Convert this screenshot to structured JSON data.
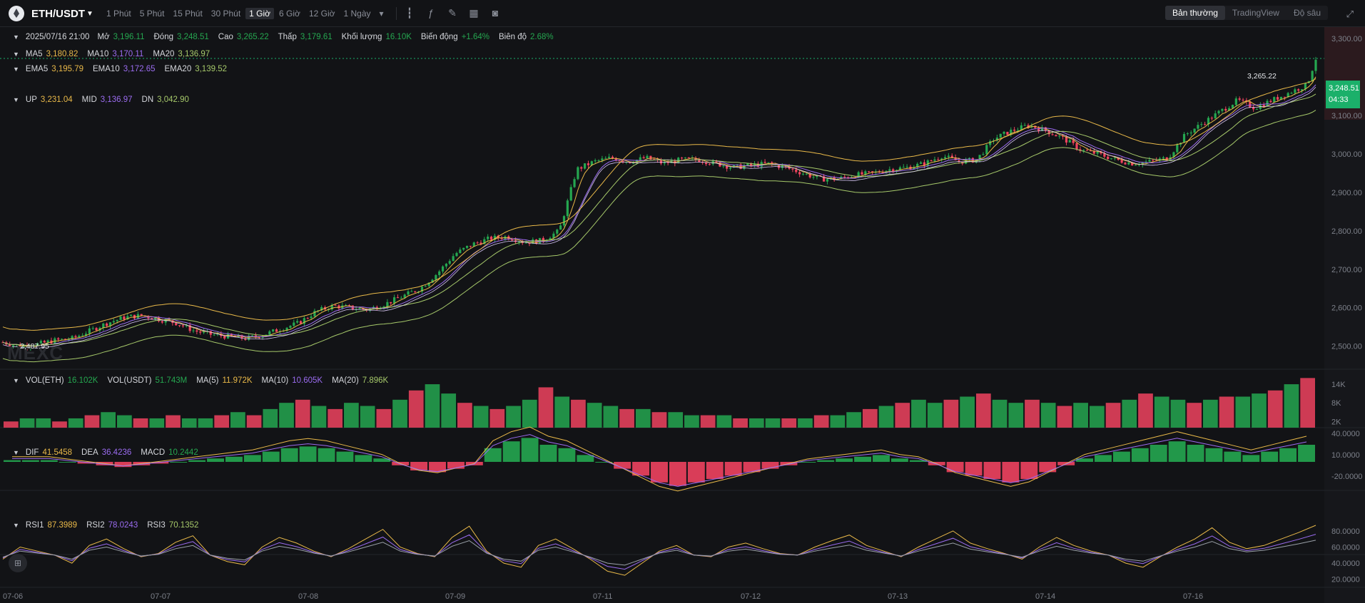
{
  "header": {
    "pair": "ETH/USDT",
    "intervals": [
      "1 Phút",
      "5 Phút",
      "15 Phút",
      "30 Phút",
      "1 Giờ",
      "6 Giờ",
      "12 Giờ",
      "1 Ngày"
    ],
    "active_interval": "1 Giờ",
    "modes": [
      "Bản thường",
      "TradingView",
      "Độ sâu"
    ],
    "active_mode": "Bản thường"
  },
  "ohlc": {
    "time": "2025/07/16 21:00",
    "open_label": "Mở",
    "open": "3,196.11",
    "close_label": "Đóng",
    "close": "3,248.51",
    "high_label": "Cao",
    "high": "3,265.22",
    "low_label": "Thấp",
    "low": "3,179.61",
    "volume_label": "Khối lượng",
    "volume": "16.10K",
    "change_label": "Biến động",
    "change": "+1.64%",
    "amplitude_label": "Biên độ",
    "amplitude": "2.68%"
  },
  "ma": {
    "ma5_label": "MA5",
    "ma5": "3,180.82",
    "ma10_label": "MA10",
    "ma10": "3,170.11",
    "ma20_label": "MA20",
    "ma20": "3,136.97"
  },
  "ema": {
    "ema5_label": "EMA5",
    "ema5": "3,195.79",
    "ema10_label": "EMA10",
    "ema10": "3,172.65",
    "ema20_label": "EMA20",
    "ema20": "3,139.52"
  },
  "boll": {
    "up_label": "UP",
    "up": "3,231.04",
    "mid_label": "MID",
    "mid": "3,136.97",
    "dn_label": "DN",
    "dn": "3,042.90"
  },
  "vol": {
    "eth_label": "VOL(ETH)",
    "eth": "16.102K",
    "usdt_label": "VOL(USDT)",
    "usdt": "51.743M",
    "ma5_label": "MA(5)",
    "ma5": "11.972K",
    "ma10_label": "MA(10)",
    "ma10": "10.605K",
    "ma20_label": "MA(20)",
    "ma20": "7.896K"
  },
  "macd": {
    "dif_label": "DIF",
    "dif": "41.5458",
    "dea_label": "DEA",
    "dea": "36.4236",
    "macd_label": "MACD",
    "macd": "10.2442"
  },
  "rsi": {
    "rsi1_label": "RSI1",
    "rsi1": "87.3989",
    "rsi2_label": "RSI2",
    "rsi2": "78.0243",
    "rsi3_label": "RSI3",
    "rsi3": "70.1352"
  },
  "price_tag": {
    "price": "3,248.51",
    "countdown": "04:33"
  },
  "high_marker": "3,265.22",
  "low_marker": "2,487.95",
  "watermark": "MEXC",
  "colors": {
    "up": "#25a750",
    "down": "#f0435f",
    "ma5": "#e9b949",
    "ma10": "#9b6cf0",
    "ma20": "#a6c96a",
    "background": "#121316"
  },
  "chart_data": {
    "type": "candlestick",
    "x_ticks": [
      "07-06",
      "07-07",
      "07-08",
      "07-09",
      "07-11",
      "07-12",
      "07-13",
      "07-14",
      "07-16"
    ],
    "price_axis": [
      "3,300.00",
      "3,100.00",
      "3,000.00",
      "2,900.00",
      "2,800.00",
      "2,700.00",
      "2,600.00",
      "2,500.00"
    ],
    "price_range": [
      2440,
      3330
    ],
    "volume_axis": [
      "14K",
      "8K",
      "2K"
    ],
    "macd_axis": [
      "40.0000",
      "10.0000",
      "-20.0000"
    ],
    "rsi_axis": [
      "80.0000",
      "60.0000",
      "40.0000",
      "20.0000"
    ],
    "close_path": [
      [
        0,
        2510
      ],
      [
        10,
        2500
      ],
      [
        20,
        2505
      ],
      [
        30,
        2515
      ],
      [
        40,
        2520
      ],
      [
        50,
        2540
      ],
      [
        60,
        2560
      ],
      [
        70,
        2575
      ],
      [
        80,
        2580
      ],
      [
        90,
        2570
      ],
      [
        100,
        2560
      ],
      [
        110,
        2540
      ],
      [
        120,
        2530
      ],
      [
        130,
        2525
      ],
      [
        140,
        2520
      ],
      [
        150,
        2530
      ],
      [
        160,
        2545
      ],
      [
        170,
        2560
      ],
      [
        180,
        2590
      ],
      [
        190,
        2605
      ],
      [
        200,
        2600
      ],
      [
        210,
        2595
      ],
      [
        220,
        2610
      ],
      [
        230,
        2630
      ],
      [
        240,
        2650
      ],
      [
        250,
        2690
      ],
      [
        260,
        2740
      ],
      [
        270,
        2765
      ],
      [
        280,
        2780
      ],
      [
        290,
        2785
      ],
      [
        300,
        2770
      ],
      [
        310,
        2775
      ],
      [
        320,
        2800
      ],
      [
        330,
        2960
      ],
      [
        340,
        2980
      ],
      [
        350,
        2990
      ],
      [
        360,
        2980
      ],
      [
        370,
        2990
      ],
      [
        380,
        2975
      ],
      [
        390,
        2985
      ],
      [
        400,
        2985
      ],
      [
        410,
        2975
      ],
      [
        420,
        2965
      ],
      [
        430,
        2970
      ],
      [
        440,
        2975
      ],
      [
        450,
        2965
      ],
      [
        460,
        2950
      ],
      [
        470,
        2935
      ],
      [
        480,
        2935
      ],
      [
        490,
        2945
      ],
      [
        500,
        2950
      ],
      [
        510,
        2960
      ],
      [
        520,
        2965
      ],
      [
        530,
        2975
      ],
      [
        540,
        2995
      ],
      [
        550,
        2980
      ],
      [
        560,
        2985
      ],
      [
        570,
        3040
      ],
      [
        580,
        3060
      ],
      [
        590,
        3075
      ],
      [
        600,
        3060
      ],
      [
        610,
        3040
      ],
      [
        620,
        3010
      ],
      [
        630,
        3000
      ],
      [
        640,
        2985
      ],
      [
        650,
        2975
      ],
      [
        660,
        2980
      ],
      [
        670,
        2990
      ],
      [
        680,
        3050
      ],
      [
        690,
        3080
      ],
      [
        700,
        3110
      ],
      [
        710,
        3140
      ],
      [
        720,
        3120
      ],
      [
        730,
        3140
      ],
      [
        740,
        3160
      ],
      [
        750,
        3180
      ],
      [
        755,
        3248
      ]
    ],
    "volume": [
      2,
      3,
      3,
      2,
      3,
      4,
      5,
      4,
      3,
      3,
      4,
      3,
      3,
      4,
      5,
      4,
      6,
      8,
      9,
      7,
      6,
      8,
      7,
      6,
      9,
      12,
      14,
      11,
      8,
      7,
      6,
      7,
      9,
      13,
      10,
      9,
      8,
      7,
      6,
      6,
      5,
      5,
      4,
      4,
      4,
      3,
      3,
      3,
      3,
      3,
      4,
      4,
      5,
      6,
      7,
      8,
      9,
      8,
      9,
      10,
      11,
      9,
      8,
      9,
      8,
      7,
      8,
      7,
      8,
      9,
      11,
      10,
      9,
      8,
      9,
      10,
      10,
      11,
      12,
      14,
      16
    ],
    "macd_hist": [
      1,
      1,
      1,
      0,
      -1,
      -2,
      -3,
      -2,
      -1,
      0,
      1,
      2,
      3,
      4,
      6,
      8,
      9,
      8,
      6,
      4,
      2,
      -2,
      -5,
      -6,
      -4,
      -2,
      8,
      12,
      14,
      10,
      8,
      4,
      0,
      -4,
      -8,
      -12,
      -14,
      -12,
      -10,
      -8,
      -6,
      -4,
      -2,
      0,
      1,
      2,
      3,
      4,
      2,
      1,
      -2,
      -6,
      -8,
      -10,
      -12,
      -10,
      -6,
      -2,
      2,
      4,
      6,
      8,
      10,
      12,
      10,
      8,
      6,
      4,
      6,
      8,
      10
    ],
    "rsi1": [
      45,
      60,
      55,
      50,
      40,
      62,
      70,
      58,
      48,
      52,
      66,
      74,
      50,
      42,
      38,
      60,
      72,
      65,
      55,
      48,
      58,
      70,
      82,
      60,
      52,
      48,
      72,
      86,
      55,
      40,
      35,
      62,
      70,
      58,
      45,
      30,
      25,
      40,
      55,
      62,
      50,
      48,
      60,
      65,
      58,
      52,
      50,
      60,
      68,
      75,
      62,
      55,
      48,
      60,
      70,
      80,
      65,
      58,
      52,
      45,
      60,
      72,
      62,
      55,
      50,
      40,
      35,
      48,
      60,
      70,
      84,
      66,
      58,
      62,
      70,
      78,
      87
    ]
  }
}
